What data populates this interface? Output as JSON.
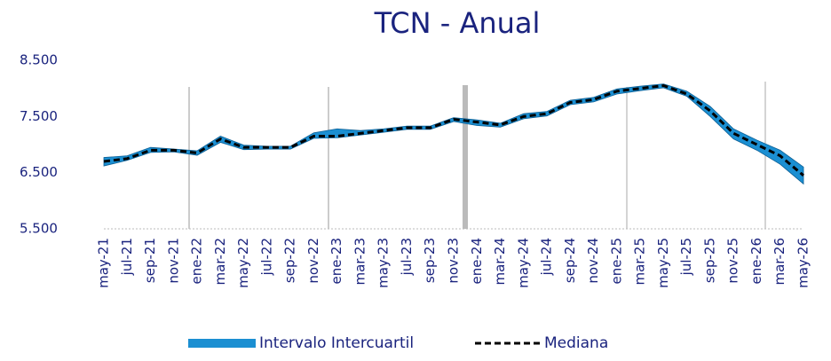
{
  "chart_data": {
    "type": "band-line",
    "title": "TCN - Anual",
    "categories": [
      "may-21",
      "jul-21",
      "sep-21",
      "nov-21",
      "ene-22",
      "mar-22",
      "may-22",
      "jul-22",
      "sep-22",
      "nov-22",
      "ene-23",
      "mar-23",
      "may-23",
      "jul-23",
      "sep-23",
      "nov-23",
      "ene-24",
      "mar-24",
      "may-24",
      "jul-24",
      "sep-24",
      "nov-24",
      "ene-25",
      "mar-25",
      "may-25",
      "jul-25",
      "sep-25",
      "nov-25",
      "ene-26",
      "mar-26",
      "may-26"
    ],
    "series": [
      {
        "name": "Intervalo Intercuartil",
        "color": "#1b8fd2",
        "low": [
          6620,
          6720,
          6860,
          6870,
          6810,
          7040,
          6910,
          6920,
          6920,
          7110,
          7120,
          7170,
          7220,
          7270,
          7270,
          7410,
          7340,
          7310,
          7460,
          7510,
          7710,
          7760,
          7900,
          7960,
          8010,
          7860,
          7500,
          7100,
          6900,
          6650,
          6300
        ],
        "high": [
          6770,
          6800,
          6950,
          6920,
          6890,
          7150,
          6990,
          6970,
          6970,
          7210,
          7280,
          7250,
          7280,
          7330,
          7330,
          7480,
          7440,
          7380,
          7550,
          7590,
          7790,
          7840,
          7990,
          8040,
          8080,
          7950,
          7680,
          7280,
          7080,
          6900,
          6600
        ]
      },
      {
        "name": "Mediana",
        "color": "#000000",
        "values": [
          6700,
          6750,
          6900,
          6900,
          6850,
          7100,
          6950,
          6950,
          6950,
          7150,
          7150,
          7200,
          7250,
          7300,
          7300,
          7450,
          7400,
          7350,
          7500,
          7550,
          7750,
          7800,
          7950,
          8000,
          8050,
          7900,
          7600,
          7200,
          7000,
          6800,
          6450
        ]
      }
    ],
    "ylim": [
      5500,
      8500
    ],
    "yticks": [
      {
        "value": 5500,
        "label": "5.500"
      },
      {
        "value": 6500,
        "label": "6.500"
      },
      {
        "value": 7500,
        "label": "7.500"
      },
      {
        "value": 8500,
        "label": "8.500"
      }
    ],
    "grid": false,
    "legend": "bottom"
  }
}
